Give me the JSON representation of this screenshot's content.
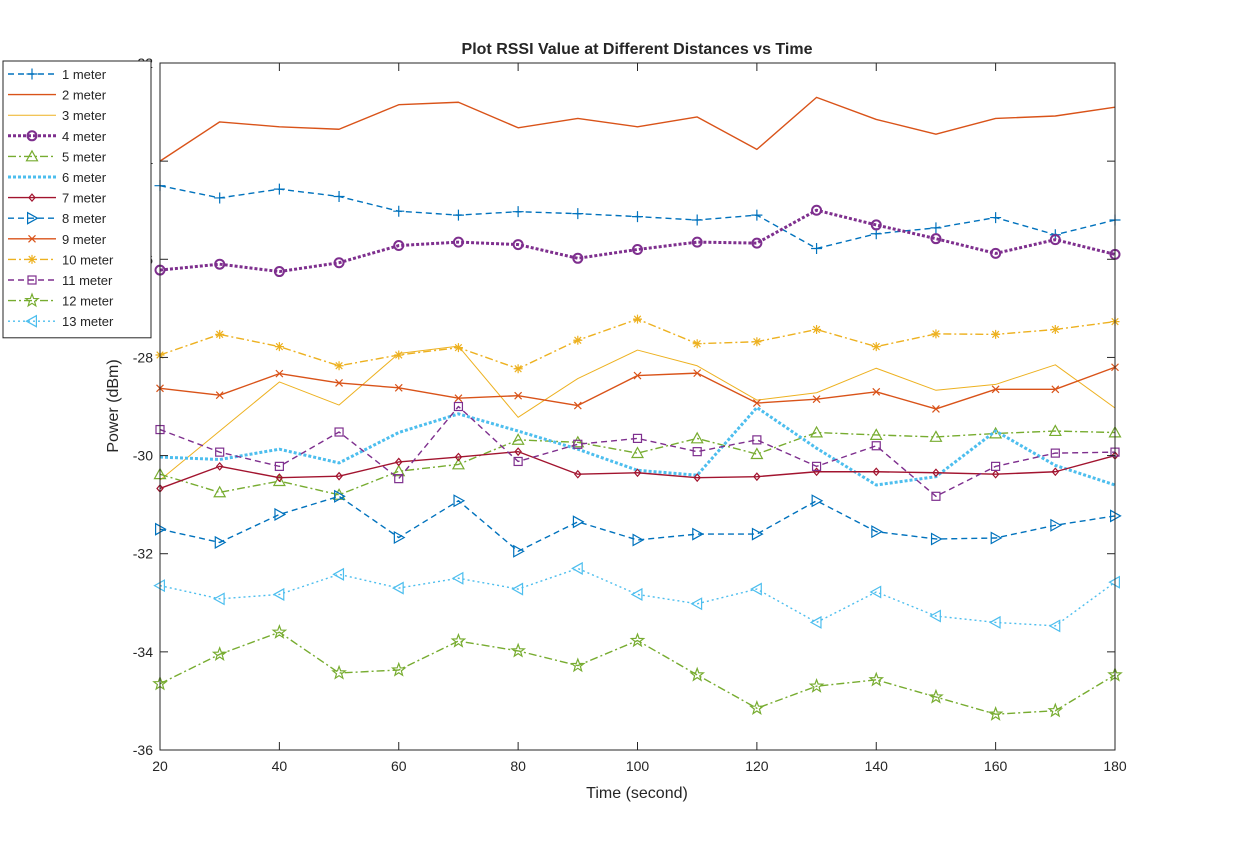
{
  "chart_data": {
    "type": "line",
    "title": "Plot RSSI Value at Different Distances vs Time",
    "xlabel": "Time (second)",
    "ylabel": "Power (dBm)",
    "xlim": [
      20,
      180
    ],
    "ylim": [
      -36,
      -22
    ],
    "xticks": [
      20,
      40,
      60,
      80,
      100,
      120,
      140,
      160,
      180
    ],
    "yticks": [
      -36,
      -34,
      -32,
      -30,
      -28,
      -26,
      -24,
      -22
    ],
    "grid": false,
    "legend_position": "outside-top-left",
    "x": [
      20,
      30,
      40,
      50,
      60,
      70,
      80,
      90,
      100,
      110,
      120,
      130,
      140,
      150,
      160,
      170,
      180
    ],
    "series": [
      {
        "name": "1 meter",
        "color": "#0072BD",
        "dash": "dashed",
        "marker": "plus",
        "values": [
          -24.5,
          -24.75,
          -24.57,
          -24.72,
          -25.02,
          -25.1,
          -25.03,
          -25.07,
          -25.13,
          -25.2,
          -25.1,
          -25.78,
          -25.48,
          -25.36,
          -25.15,
          -25.5,
          -25.2
        ]
      },
      {
        "name": "2 meter",
        "color": "#D95319",
        "dash": "solid",
        "marker": "none",
        "values": [
          -24.0,
          -23.2,
          -23.3,
          -23.35,
          -22.85,
          -22.8,
          -23.32,
          -23.13,
          -23.3,
          -23.1,
          -23.76,
          -22.7,
          -23.15,
          -23.45,
          -23.13,
          -23.08,
          -22.9
        ]
      },
      {
        "name": "3 meter",
        "color": "#EDB120",
        "dash": "solid",
        "marker": "none",
        "thin": true,
        "values": [
          -30.5,
          -29.5,
          -28.5,
          -28.97,
          -27.92,
          -27.77,
          -29.22,
          -28.43,
          -27.85,
          -28.17,
          -28.87,
          -28.72,
          -28.22,
          -28.67,
          -28.55,
          -28.15,
          -29.03
        ]
      },
      {
        "name": "4 meter",
        "color": "#7E2F8E",
        "dash": "dotted-thick",
        "marker": "circle",
        "values": [
          -26.22,
          -26.1,
          -26.25,
          -26.07,
          -25.72,
          -25.65,
          -25.7,
          -25.98,
          -25.8,
          -25.65,
          -25.67,
          -25.0,
          -25.3,
          -25.58,
          -25.88,
          -25.6,
          -25.9
        ]
      },
      {
        "name": "5 meter",
        "color": "#77AC30",
        "dash": "dashdot",
        "marker": "triangle-up",
        "values": [
          -30.38,
          -30.75,
          -30.52,
          -30.8,
          -30.32,
          -30.18,
          -29.68,
          -29.73,
          -29.95,
          -29.65,
          -29.97,
          -29.53,
          -29.58,
          -29.62,
          -29.55,
          -29.5,
          -29.53
        ]
      },
      {
        "name": "6 meter",
        "color": "#4DBEEE",
        "dash": "dotted-thick",
        "marker": "none",
        "values": [
          -30.03,
          -30.08,
          -29.87,
          -30.15,
          -29.53,
          -29.15,
          -29.5,
          -29.87,
          -30.3,
          -30.4,
          -29.02,
          -29.85,
          -30.6,
          -30.43,
          -29.5,
          -30.2,
          -30.6
        ]
      },
      {
        "name": "7 meter",
        "color": "#A2142F",
        "dash": "solid",
        "marker": "diamond",
        "values": [
          -30.67,
          -30.22,
          -30.45,
          -30.42,
          -30.13,
          -30.03,
          -29.92,
          -30.38,
          -30.35,
          -30.45,
          -30.43,
          -30.33,
          -30.33,
          -30.35,
          -30.38,
          -30.33,
          -30.0
        ]
      },
      {
        "name": "8 meter",
        "color": "#0072BD",
        "dash": "dashed",
        "marker": "triangle-right",
        "values": [
          -31.5,
          -31.77,
          -31.2,
          -30.83,
          -31.67,
          -30.92,
          -31.95,
          -31.35,
          -31.72,
          -31.6,
          -31.6,
          -30.92,
          -31.55,
          -31.7,
          -31.68,
          -31.42,
          -31.23
        ]
      },
      {
        "name": "9 meter",
        "color": "#D95319",
        "dash": "solid",
        "marker": "x",
        "values": [
          -28.63,
          -28.77,
          -28.33,
          -28.52,
          -28.62,
          -28.83,
          -28.78,
          -28.98,
          -28.37,
          -28.32,
          -28.93,
          -28.85,
          -28.7,
          -29.05,
          -28.65,
          -28.65,
          -28.2
        ]
      },
      {
        "name": "10 meter",
        "color": "#EDB120",
        "dash": "dashdot",
        "marker": "asterisk",
        "values": [
          -27.95,
          -27.53,
          -27.78,
          -28.17,
          -27.95,
          -27.8,
          -28.23,
          -27.65,
          -27.22,
          -27.72,
          -27.68,
          -27.43,
          -27.78,
          -27.52,
          -27.53,
          -27.43,
          -27.27
        ]
      },
      {
        "name": "11 meter",
        "color": "#7E2F8E",
        "dash": "dashed",
        "marker": "square",
        "values": [
          -29.47,
          -29.93,
          -30.22,
          -29.52,
          -30.47,
          -29.0,
          -30.12,
          -29.77,
          -29.65,
          -29.92,
          -29.68,
          -30.22,
          -29.8,
          -30.83,
          -30.22,
          -29.95,
          -29.93
        ]
      },
      {
        "name": "12 meter",
        "color": "#77AC30",
        "dash": "dashdot",
        "marker": "star",
        "values": [
          -34.65,
          -34.05,
          -33.6,
          -34.43,
          -34.37,
          -33.78,
          -33.98,
          -34.28,
          -33.77,
          -34.47,
          -35.15,
          -34.7,
          -34.57,
          -34.92,
          -35.27,
          -35.2,
          -34.47
        ]
      },
      {
        "name": "13 meter",
        "color": "#4DBEEE",
        "dash": "dotted",
        "marker": "triangle-left",
        "values": [
          -32.65,
          -32.92,
          -32.83,
          -32.42,
          -32.7,
          -32.5,
          -32.72,
          -32.3,
          -32.83,
          -33.02,
          -32.72,
          -33.4,
          -32.78,
          -33.27,
          -33.4,
          -33.47,
          -32.58
        ]
      }
    ]
  }
}
